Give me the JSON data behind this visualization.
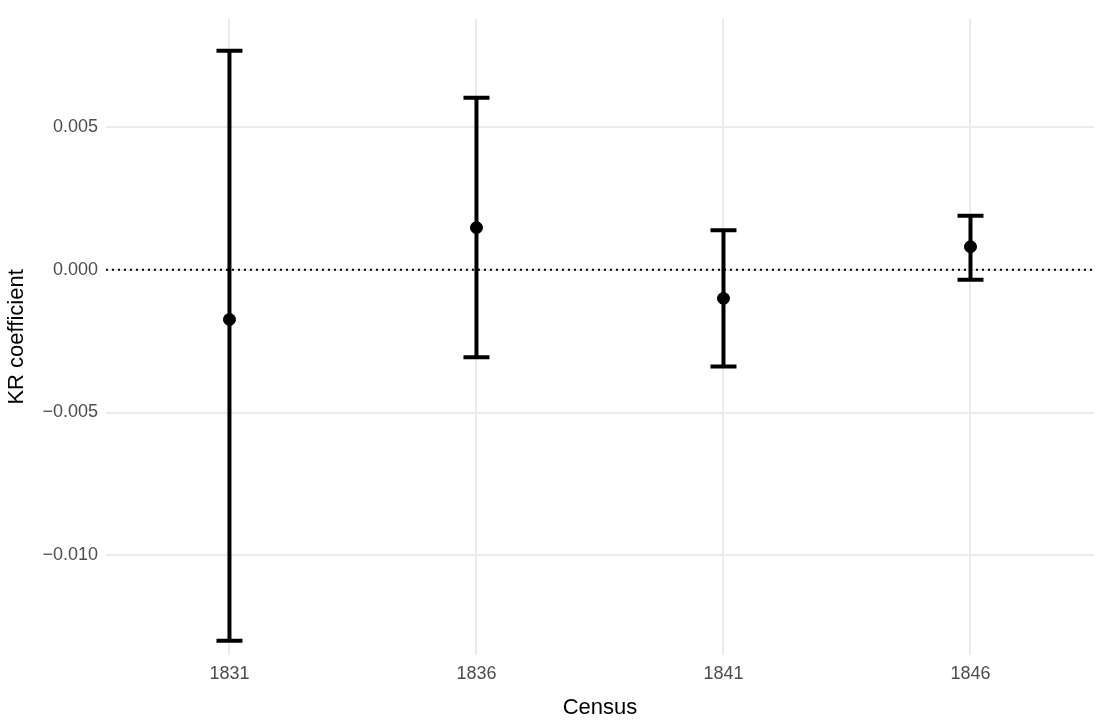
{
  "chart_data": {
    "type": "scatter",
    "xlabel": "Census",
    "ylabel": "KR coefficient",
    "categories": [
      "1831",
      "1836",
      "1841",
      "1846"
    ],
    "values": [
      -0.00174,
      0.00148,
      -0.001,
      0.00081
    ],
    "errors": [
      [
        -0.013,
        0.00768
      ],
      [
        -0.00306,
        0.00603
      ],
      [
        -0.00339,
        0.00139
      ],
      [
        -0.00035,
        0.0019
      ]
    ],
    "color": "#000000",
    "marker": "circle",
    "ylim": [
      -0.0135,
      0.0088
    ],
    "yticks": [
      {
        "value": -0.01,
        "label": "−0.010"
      },
      {
        "value": -0.005,
        "label": "−0.005"
      },
      {
        "value": 0,
        "label": "0.000"
      },
      {
        "value": 0.005,
        "label": "0.005"
      }
    ],
    "ref_lines": [
      {
        "axis": "y",
        "value": 0,
        "line_style": "dotted",
        "color": "#000000"
      }
    ],
    "grid": true
  }
}
